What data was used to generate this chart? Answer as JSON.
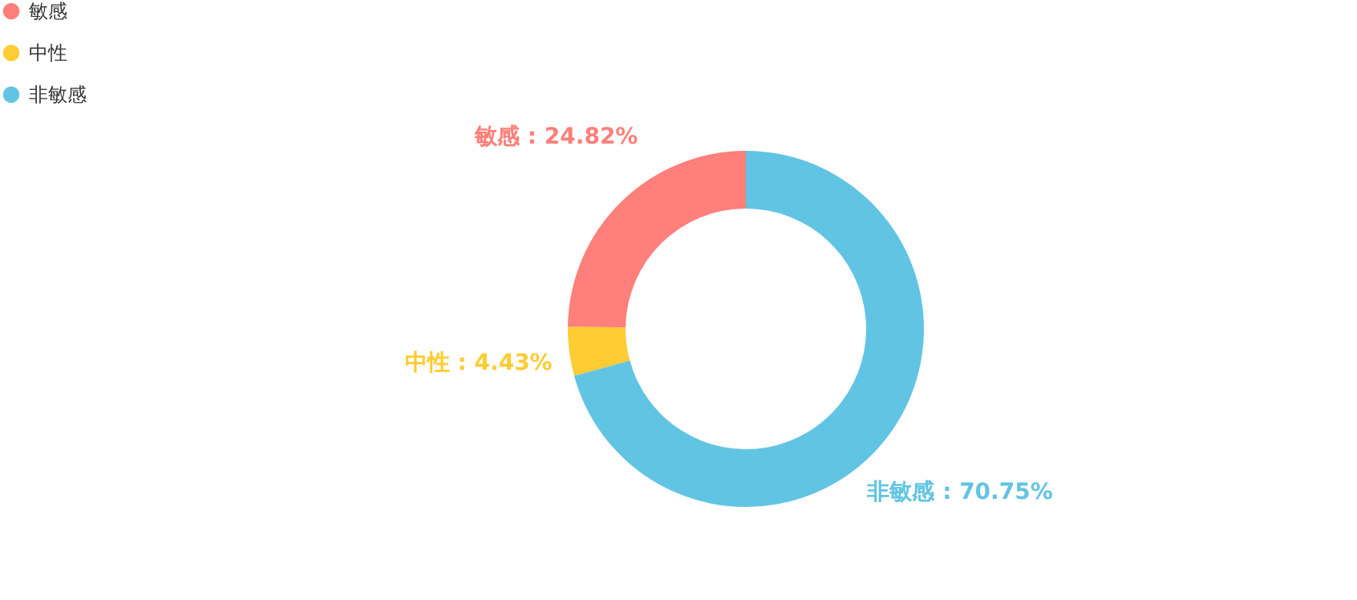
{
  "chart_data": {
    "type": "donut",
    "categories": [
      "敏感",
      "中性",
      "非敏感"
    ],
    "values": [
      24.82,
      4.43,
      70.75
    ],
    "colors": [
      "#ff7f7b",
      "#ffcc33",
      "#62c4e3"
    ],
    "value_labels": [
      "敏感 : 24.82%",
      "中性 : 4.43%",
      "非敏感 : 70.75%"
    ],
    "legend": "top left"
  }
}
